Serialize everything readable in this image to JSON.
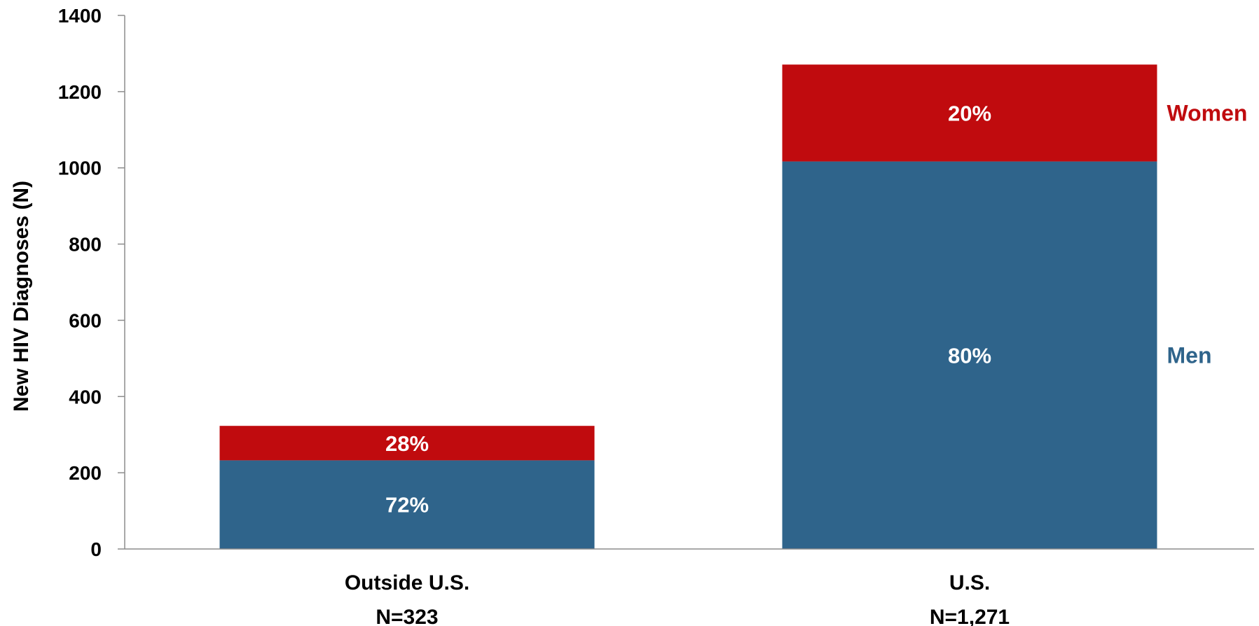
{
  "chart_data": {
    "type": "bar",
    "stacked": true,
    "categories": [
      "Outside U.S.",
      "U.S."
    ],
    "category_n": [
      "N=323",
      "N=1,271"
    ],
    "totals": [
      323,
      1271
    ],
    "series": [
      {
        "name": "Men",
        "values": [
          232.6,
          1016.8
        ],
        "labels": [
          "72%",
          "80%"
        ],
        "color": "#2f648b"
      },
      {
        "name": "Women",
        "values": [
          90.4,
          254.2
        ],
        "labels": [
          "28%",
          "20%"
        ],
        "color": "#c00b0e"
      }
    ],
    "ylabel": "New HIV Diagnoses (N)",
    "xlabel": "",
    "ylim": [
      0,
      1400
    ],
    "yticks": [
      0,
      200,
      400,
      600,
      800,
      1000,
      1200,
      1400
    ],
    "grid": false,
    "legend": "right, inline labels beside top bar",
    "axis_color": "#8c8c8c"
  }
}
